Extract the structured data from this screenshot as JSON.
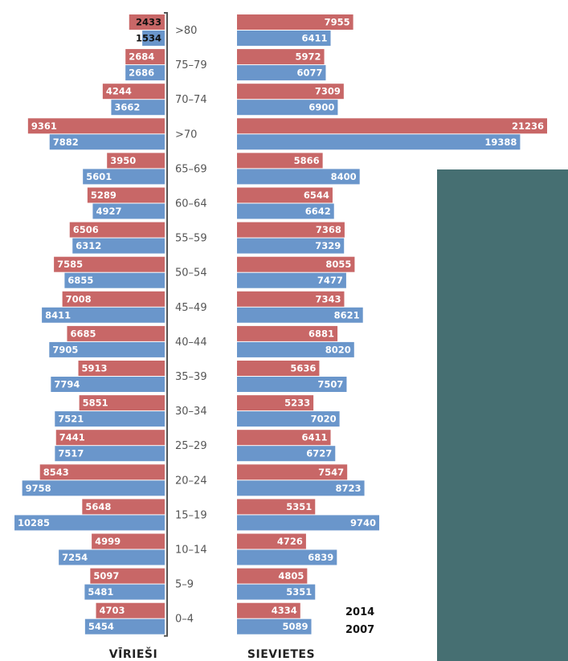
{
  "colors": {
    "year_2014": "#c86767",
    "year_2007": "#6a96cb",
    "panel": "#466f72",
    "axis": "#555555"
  },
  "axis_titles": {
    "left": "VĪRIEŠI",
    "right": "SIEVIETES"
  },
  "legend": {
    "item_2014": "2014",
    "item_2007": "2007"
  },
  "chart_data": {
    "type": "bar",
    "orientation": "horizontal-pyramid",
    "categories": [
      ">80",
      "75–79",
      "70–74",
      ">70",
      "65–69",
      "60–64",
      "55–59",
      "50–54",
      "45–49",
      "40–44",
      "35–39",
      "30–34",
      "25–29",
      "20–24",
      "15–19",
      "10–14",
      "5–9",
      "0–4"
    ],
    "left_title": "VĪRIEŠI",
    "right_title": "SIEVIETES",
    "series": [
      {
        "name": "2014",
        "color": "#c86767",
        "men": [
          2433,
          2684,
          4244,
          9361,
          3950,
          5289,
          6506,
          7585,
          7008,
          6685,
          5913,
          5851,
          7441,
          8543,
          5648,
          4999,
          5097,
          4703
        ],
        "women": [
          7955,
          5972,
          7309,
          21236,
          5866,
          6544,
          7368,
          8055,
          7343,
          6881,
          5636,
          5233,
          6411,
          7547,
          5351,
          4726,
          4805,
          4334
        ]
      },
      {
        "name": "2007",
        "color": "#6a96cb",
        "men": [
          1534,
          2686,
          3662,
          7882,
          5601,
          4927,
          6312,
          6855,
          8411,
          7905,
          7794,
          7521,
          7517,
          9758,
          10285,
          7254,
          5481,
          5454
        ],
        "women": [
          6411,
          6077,
          6900,
          19388,
          8400,
          6642,
          7329,
          7477,
          8621,
          8020,
          7507,
          7020,
          6727,
          8723,
          9740,
          6839,
          5351,
          5089
        ]
      }
    ]
  }
}
